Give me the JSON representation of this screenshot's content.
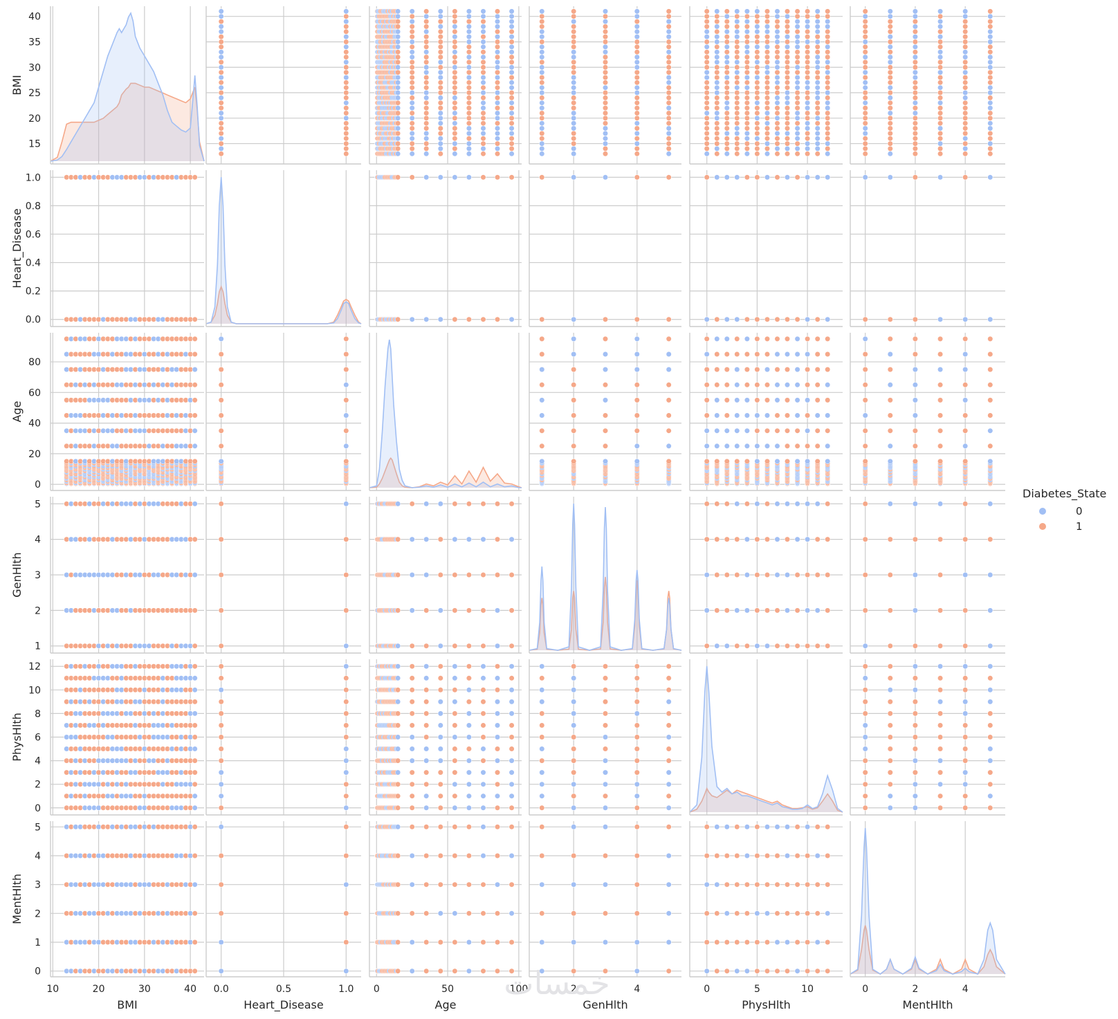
{
  "chart_data": {
    "type": "scatter",
    "title": "",
    "variables": [
      "BMI",
      "Heart_Disease",
      "Age",
      "GenHlth",
      "PhysHlth",
      "MentHlth"
    ],
    "axes": {
      "BMI": {
        "lim": [
          9.5,
          43
        ],
        "ticks": [
          10,
          20,
          30,
          40
        ],
        "tick_labels": [
          "10",
          "20",
          "30",
          "40"
        ],
        "y_ticks": [
          15,
          20,
          25,
          30,
          35,
          40
        ],
        "y_tick_labels": [
          "15",
          "20",
          "25",
          "30",
          "35",
          "40"
        ],
        "y_lim": [
          11,
          42
        ]
      },
      "Heart_Disease": {
        "lim": [
          -0.12,
          1.12
        ],
        "ticks": [
          0.0,
          0.5,
          1.0
        ],
        "tick_labels": [
          "0.0",
          "0.5",
          "1.0"
        ],
        "y_ticks": [
          0.0,
          0.2,
          0.4,
          0.6,
          0.8,
          1.0
        ],
        "y_tick_labels": [
          "0.0",
          "0.2",
          "0.4",
          "0.6",
          "0.8",
          "1.0"
        ],
        "y_lim": [
          -0.05,
          1.05
        ]
      },
      "Age": {
        "lim": [
          -5,
          102
        ],
        "ticks": [
          0,
          50,
          100
        ],
        "tick_labels": [
          "0",
          "50",
          "100"
        ],
        "y_ticks": [
          0,
          20,
          40,
          60,
          80
        ],
        "y_tick_labels": [
          "0",
          "20",
          "40",
          "60",
          "80"
        ],
        "y_lim": [
          -4,
          99
        ]
      },
      "GenHlth": {
        "lim": [
          0.6,
          5.4
        ],
        "ticks": [
          2,
          4
        ],
        "tick_labels": [
          "2",
          "4"
        ],
        "y_ticks": [
          1,
          2,
          3,
          4,
          5
        ],
        "y_tick_labels": [
          "1",
          "2",
          "3",
          "4",
          "5"
        ],
        "y_lim": [
          0.8,
          5.2
        ]
      },
      "PhysHlth": {
        "lim": [
          -1.7,
          13.5
        ],
        "ticks": [
          0,
          5,
          10
        ],
        "tick_labels": [
          "0",
          "5",
          "10"
        ],
        "y_ticks": [
          0,
          2,
          4,
          6,
          8,
          10,
          12
        ],
        "y_tick_labels": [
          "0",
          "2",
          "4",
          "6",
          "8",
          "10",
          "12"
        ],
        "y_lim": [
          -0.6,
          12.6
        ]
      },
      "MentHlth": {
        "lim": [
          -0.6,
          5.6
        ],
        "ticks": [
          0,
          2,
          4
        ],
        "tick_labels": [
          "0",
          "2",
          "4"
        ],
        "y_ticks": [
          0,
          1,
          2,
          3,
          4,
          5
        ],
        "y_tick_labels": [
          "0",
          "1",
          "2",
          "3",
          "4",
          "5"
        ],
        "y_lim": [
          -0.2,
          5.2
        ]
      }
    },
    "discrete_values": {
      "BMI": [
        13,
        14,
        15,
        16,
        17,
        18,
        19,
        20,
        21,
        22,
        23,
        24,
        25,
        26,
        27,
        28,
        29,
        30,
        31,
        32,
        33,
        34,
        35,
        36,
        37,
        38,
        39,
        40,
        41
      ],
      "Heart_Disease": [
        0,
        1
      ],
      "Age": [
        0.5,
        1,
        2,
        3,
        4,
        5,
        6,
        7,
        8,
        9,
        10,
        11,
        12,
        13,
        14,
        15,
        25,
        35,
        45,
        55,
        65,
        75,
        85,
        95
      ],
      "GenHlth": [
        1,
        2,
        3,
        4,
        5
      ],
      "PhysHlth": [
        0,
        1,
        2,
        3,
        4,
        5,
        6,
        7,
        8,
        9,
        10,
        11,
        12
      ],
      "MentHlth": [
        0,
        1,
        2,
        3,
        4,
        5
      ]
    },
    "diagonal_kde": {
      "BMI": {
        "x": [
          9.5,
          11,
          12,
          13,
          14,
          15,
          16,
          17,
          18,
          19,
          20,
          21,
          22,
          23,
          24,
          24.5,
          25,
          26,
          26.5,
          27,
          27.5,
          28,
          29,
          30,
          31,
          32,
          33,
          34,
          35,
          36,
          37,
          38,
          39,
          40,
          40.5,
          41,
          41.5,
          42,
          43
        ],
        "series": [
          {
            "name": "0",
            "density": [
              0,
              0.003,
              0.012,
              0.03,
              0.05,
              0.07,
              0.09,
              0.11,
              0.13,
              0.15,
              0.19,
              0.23,
              0.27,
              0.3,
              0.33,
              0.34,
              0.33,
              0.35,
              0.37,
              0.38,
              0.36,
              0.32,
              0.29,
              0.27,
              0.25,
              0.23,
              0.2,
              0.17,
              0.13,
              0.1,
              0.09,
              0.08,
              0.075,
              0.085,
              0.15,
              0.22,
              0.14,
              0.04,
              0
            ]
          },
          {
            "name": "1",
            "density": [
              0,
              0.01,
              0.05,
              0.095,
              0.1,
              0.1,
              0.1,
              0.1,
              0.1,
              0.1,
              0.105,
              0.11,
              0.12,
              0.13,
              0.14,
              0.15,
              0.17,
              0.185,
              0.19,
              0.2,
              0.2,
              0.2,
              0.195,
              0.19,
              0.19,
              0.185,
              0.18,
              0.175,
              0.17,
              0.165,
              0.16,
              0.155,
              0.15,
              0.16,
              0.175,
              0.19,
              0.13,
              0.05,
              0
            ]
          }
        ]
      },
      "Heart_Disease": {
        "x": [
          -0.12,
          -0.08,
          -0.05,
          -0.03,
          -0.015,
          0,
          0.015,
          0.03,
          0.05,
          0.08,
          0.12,
          0.3,
          0.5,
          0.7,
          0.85,
          0.9,
          0.93,
          0.96,
          0.98,
          1.0,
          1.02,
          1.04,
          1.07,
          1.1,
          1.12
        ],
        "series": [
          {
            "name": "0",
            "density": [
              0,
              0.01,
              0.1,
              0.35,
              0.7,
              0.87,
              0.7,
              0.35,
              0.1,
              0.01,
              0,
              0,
              0,
              0,
              0,
              0.005,
              0.03,
              0.08,
              0.12,
              0.13,
              0.12,
              0.08,
              0.03,
              0.005,
              0
            ]
          },
          {
            "name": "1",
            "density": [
              0,
              0.01,
              0.05,
              0.12,
              0.19,
              0.22,
              0.19,
              0.12,
              0.05,
              0.01,
              0,
              0,
              0,
              0,
              0,
              0.01,
              0.05,
              0.1,
              0.135,
              0.145,
              0.135,
              0.1,
              0.05,
              0.01,
              0
            ]
          }
        ]
      },
      "Age": {
        "x": [
          -5,
          0,
          2,
          4,
          6,
          8,
          9,
          10,
          11,
          12,
          14,
          16,
          18,
          20,
          25,
          30,
          35,
          40,
          45,
          50,
          55,
          60,
          65,
          70,
          75,
          80,
          85,
          90,
          95,
          100,
          102
        ],
        "series": [
          {
            "name": "0",
            "density": [
              0,
              0.002,
              0.02,
              0.06,
              0.11,
              0.15,
              0.16,
              0.15,
              0.12,
              0.09,
              0.05,
              0.02,
              0.008,
              0.002,
              0,
              0.0005,
              0.002,
              0.0005,
              0.003,
              0.0005,
              0.004,
              0.001,
              0.005,
              0.001,
              0.006,
              0.001,
              0.004,
              0.001,
              0.002,
              0,
              0
            ]
          },
          {
            "name": "1",
            "density": [
              0,
              0.0005,
              0.004,
              0.01,
              0.018,
              0.026,
              0.03,
              0.032,
              0.03,
              0.025,
              0.015,
              0.006,
              0.002,
              0.0005,
              0,
              0.001,
              0.004,
              0.002,
              0.006,
              0.003,
              0.013,
              0.004,
              0.018,
              0.006,
              0.022,
              0.007,
              0.015,
              0.005,
              0.004,
              0.001,
              0
            ]
          }
        ]
      },
      "GenHlth": {
        "x": [
          0.6,
          0.85,
          0.93,
          0.97,
          1.0,
          1.03,
          1.07,
          1.15,
          1.5,
          1.85,
          1.93,
          1.97,
          2.0,
          2.03,
          2.07,
          2.15,
          2.5,
          2.85,
          2.93,
          2.97,
          3.0,
          3.03,
          3.07,
          3.15,
          3.5,
          3.85,
          3.93,
          3.97,
          4.0,
          4.03,
          4.07,
          4.15,
          4.5,
          4.85,
          4.93,
          4.97,
          5.0,
          5.03,
          5.07,
          5.15,
          5.4
        ],
        "series": [
          {
            "name": "0",
            "density": [
              0,
              0.005,
              0.08,
              0.2,
              0.24,
              0.2,
              0.08,
              0.005,
              0,
              0.01,
              0.18,
              0.36,
              0.42,
              0.36,
              0.18,
              0.01,
              0,
              0.01,
              0.17,
              0.35,
              0.41,
              0.35,
              0.17,
              0.01,
              0,
              0.005,
              0.09,
              0.2,
              0.23,
              0.2,
              0.09,
              0.005,
              0,
              0.005,
              0.06,
              0.13,
              0.15,
              0.13,
              0.06,
              0.005,
              0
            ]
          },
          {
            "name": "1",
            "density": [
              0,
              0.003,
              0.05,
              0.13,
              0.15,
              0.13,
              0.05,
              0.003,
              0,
              0.003,
              0.06,
              0.15,
              0.17,
              0.15,
              0.06,
              0.003,
              0,
              0.004,
              0.08,
              0.18,
              0.21,
              0.18,
              0.08,
              0.004,
              0,
              0.004,
              0.07,
              0.17,
              0.2,
              0.17,
              0.07,
              0.004,
              0,
              0.004,
              0.06,
              0.15,
              0.17,
              0.15,
              0.06,
              0.004,
              0
            ]
          }
        ]
      },
      "PhysHlth": {
        "x": [
          -1.7,
          -1,
          -0.5,
          -0.2,
          0,
          0.2,
          0.5,
          1,
          1.5,
          2,
          2.5,
          3,
          3.5,
          4,
          4.5,
          5,
          5.5,
          6,
          6.5,
          7,
          7.5,
          8,
          8.5,
          9,
          9.5,
          10,
          10.5,
          11,
          11.5,
          12,
          12.5,
          13,
          13.5
        ],
        "series": [
          {
            "name": "0",
            "density": [
              0,
              0.02,
              0.15,
              0.33,
              0.4,
              0.33,
              0.18,
              0.07,
              0.055,
              0.065,
              0.05,
              0.055,
              0.045,
              0.045,
              0.04,
              0.035,
              0.03,
              0.025,
              0.02,
              0.025,
              0.015,
              0.012,
              0.008,
              0.008,
              0.01,
              0.02,
              0.01,
              0.015,
              0.05,
              0.1,
              0.06,
              0.01,
              0
            ]
          },
          {
            "name": "1",
            "density": [
              0,
              0.008,
              0.03,
              0.05,
              0.065,
              0.055,
              0.045,
              0.04,
              0.05,
              0.06,
              0.05,
              0.06,
              0.055,
              0.05,
              0.045,
              0.04,
              0.035,
              0.03,
              0.025,
              0.03,
              0.02,
              0.015,
              0.01,
              0.01,
              0.012,
              0.015,
              0.008,
              0.012,
              0.03,
              0.05,
              0.03,
              0.005,
              0
            ]
          }
        ]
      },
      "MentHlth": {
        "x": [
          -0.6,
          -0.3,
          -0.15,
          -0.05,
          0,
          0.05,
          0.15,
          0.3,
          0.6,
          0.85,
          1.0,
          1.15,
          1.5,
          1.85,
          2.0,
          2.15,
          2.5,
          2.85,
          3.0,
          3.15,
          3.5,
          3.85,
          4.0,
          4.15,
          4.5,
          4.75,
          4.9,
          5.0,
          5.1,
          5.25,
          5.6
        ],
        "series": [
          {
            "name": "0",
            "density": [
              0,
              0.01,
              0.12,
              0.26,
              0.3,
              0.26,
              0.12,
              0.01,
              0,
              0.01,
              0.03,
              0.01,
              0,
              0.012,
              0.035,
              0.012,
              0,
              0.007,
              0.02,
              0.007,
              0,
              0.005,
              0.012,
              0.005,
              0,
              0.03,
              0.09,
              0.105,
              0.09,
              0.03,
              0
            ]
          },
          {
            "name": "1",
            "density": [
              0,
              0.008,
              0.05,
              0.09,
              0.1,
              0.09,
              0.05,
              0.008,
              0,
              0.01,
              0.03,
              0.01,
              0,
              0.01,
              0.03,
              0.01,
              0,
              0.01,
              0.03,
              0.01,
              0,
              0.01,
              0.03,
              0.01,
              0,
              0.015,
              0.04,
              0.05,
              0.04,
              0.015,
              0
            ]
          }
        ]
      }
    },
    "legend": {
      "title": "Diabetes_State",
      "entries": [
        "0",
        "1"
      ],
      "placement": "right"
    },
    "colors": {
      "0": "#a1bff4",
      "1": "#f5a889",
      "grid": "#cccccc",
      "spine": "#cccccc",
      "text": "#262626"
    },
    "grid": true
  },
  "watermark": "خمسات"
}
